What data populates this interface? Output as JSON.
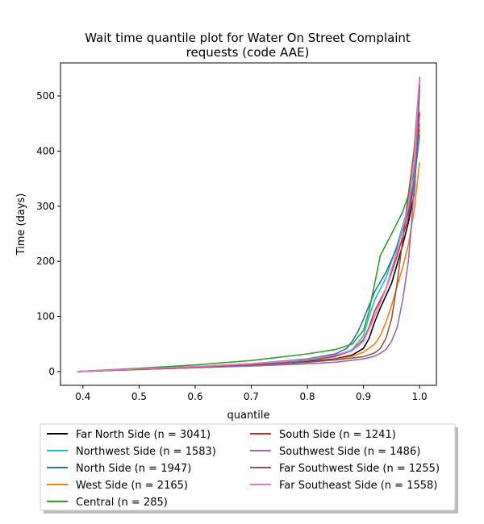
{
  "chart_data": {
    "type": "line",
    "title": [
      "Wait time quantile plot for Water On Street Complaint",
      "requests (code AAE)"
    ],
    "xlabel": "quantile",
    "ylabel": "Time (days)",
    "xlim": [
      0.36,
      1.03
    ],
    "ylim": [
      -25,
      560
    ],
    "xticks": [
      "0.4",
      "0.5",
      "0.6",
      "0.7",
      "0.8",
      "0.9",
      "1.0"
    ],
    "xtick_values": [
      0.4,
      0.5,
      0.6,
      0.7,
      0.8,
      0.9,
      1.0
    ],
    "yticks": [
      "0",
      "100",
      "200",
      "300",
      "400",
      "500"
    ],
    "ytick_values": [
      0,
      100,
      200,
      300,
      400,
      500
    ],
    "grid": false,
    "legend_placement": "below plot, two columns",
    "series": [
      {
        "name": "Far North Side (n = 3041)",
        "color": "#000000",
        "x": [
          0.39,
          0.5,
          0.6,
          0.7,
          0.8,
          0.85,
          0.88,
          0.9,
          0.91,
          0.92,
          0.93,
          0.95,
          0.97,
          0.98,
          0.99,
          0.995,
          1.0
        ],
        "y": [
          0,
          4,
          7,
          11,
          18,
          23,
          30,
          42,
          60,
          90,
          115,
          160,
          230,
          270,
          320,
          400,
          520
        ]
      },
      {
        "name": "Northwest Side (n = 1583)",
        "color": "#17becf",
        "x": [
          0.39,
          0.5,
          0.6,
          0.7,
          0.8,
          0.85,
          0.88,
          0.9,
          0.91,
          0.92,
          0.94,
          0.96,
          0.98,
          0.99,
          1.0
        ],
        "y": [
          0,
          5,
          8,
          13,
          20,
          27,
          40,
          65,
          100,
          130,
          170,
          230,
          300,
          350,
          450
        ]
      },
      {
        "name": "North Side (n = 1947)",
        "color": "#1f77b4",
        "x": [
          0.39,
          0.5,
          0.6,
          0.7,
          0.8,
          0.85,
          0.87,
          0.88,
          0.89,
          0.9,
          0.91,
          0.92,
          0.94,
          0.96,
          0.98,
          0.99,
          1.0
        ],
        "y": [
          0,
          5,
          9,
          14,
          23,
          32,
          42,
          55,
          72,
          95,
          120,
          145,
          180,
          225,
          290,
          340,
          430
        ]
      },
      {
        "name": "West Side (n = 2165)",
        "color": "#ff7f0e",
        "x": [
          0.39,
          0.5,
          0.6,
          0.7,
          0.8,
          0.85,
          0.88,
          0.9,
          0.92,
          0.93,
          0.94,
          0.95,
          0.97,
          0.98,
          0.99,
          1.0
        ],
        "y": [
          0,
          4,
          7,
          11,
          17,
          22,
          28,
          35,
          50,
          65,
          90,
          120,
          190,
          230,
          290,
          380
        ]
      },
      {
        "name": "Central (n = 285)",
        "color": "#2ca02c",
        "x": [
          0.39,
          0.5,
          0.6,
          0.7,
          0.8,
          0.85,
          0.88,
          0.9,
          0.91,
          0.92,
          0.93,
          0.94,
          0.95,
          0.97,
          0.98,
          0.99,
          1.0
        ],
        "y": [
          0,
          6,
          12,
          20,
          32,
          40,
          50,
          75,
          110,
          160,
          210,
          230,
          250,
          290,
          320,
          360,
          440
        ]
      },
      {
        "name": "South Side (n = 1241)",
        "color": "#d62728",
        "x": [
          0.39,
          0.5,
          0.6,
          0.7,
          0.8,
          0.85,
          0.88,
          0.9,
          0.91,
          0.92,
          0.94,
          0.96,
          0.98,
          0.99,
          1.0
        ],
        "y": [
          0,
          5,
          9,
          14,
          21,
          28,
          38,
          58,
          80,
          110,
          150,
          210,
          280,
          340,
          470
        ]
      },
      {
        "name": "Southwest Side (n = 1486)",
        "color": "#9467bd",
        "x": [
          0.39,
          0.5,
          0.6,
          0.7,
          0.8,
          0.85,
          0.9,
          0.92,
          0.93,
          0.94,
          0.95,
          0.96,
          0.97,
          0.98,
          0.985,
          0.99,
          0.995,
          1.0
        ],
        "y": [
          0,
          4,
          7,
          10,
          14,
          17,
          23,
          28,
          33,
          40,
          55,
          80,
          130,
          200,
          260,
          330,
          420,
          535
        ]
      },
      {
        "name": "Far Southwest Side (n = 1255)",
        "color": "#8c564b",
        "x": [
          0.39,
          0.5,
          0.6,
          0.7,
          0.8,
          0.85,
          0.9,
          0.92,
          0.93,
          0.94,
          0.95,
          0.96,
          0.97,
          0.98,
          0.99,
          1.0
        ],
        "y": [
          0,
          4,
          8,
          12,
          17,
          21,
          27,
          34,
          42,
          60,
          95,
          160,
          240,
          320,
          400,
          530
        ]
      },
      {
        "name": "Far Southeast Side (n = 1558)",
        "color": "#e377c2",
        "x": [
          0.39,
          0.5,
          0.6,
          0.7,
          0.8,
          0.85,
          0.88,
          0.9,
          0.92,
          0.94,
          0.96,
          0.98,
          0.99,
          1.0
        ],
        "y": [
          0,
          5,
          9,
          14,
          22,
          30,
          38,
          55,
          100,
          150,
          220,
          300,
          380,
          535
        ]
      }
    ]
  }
}
